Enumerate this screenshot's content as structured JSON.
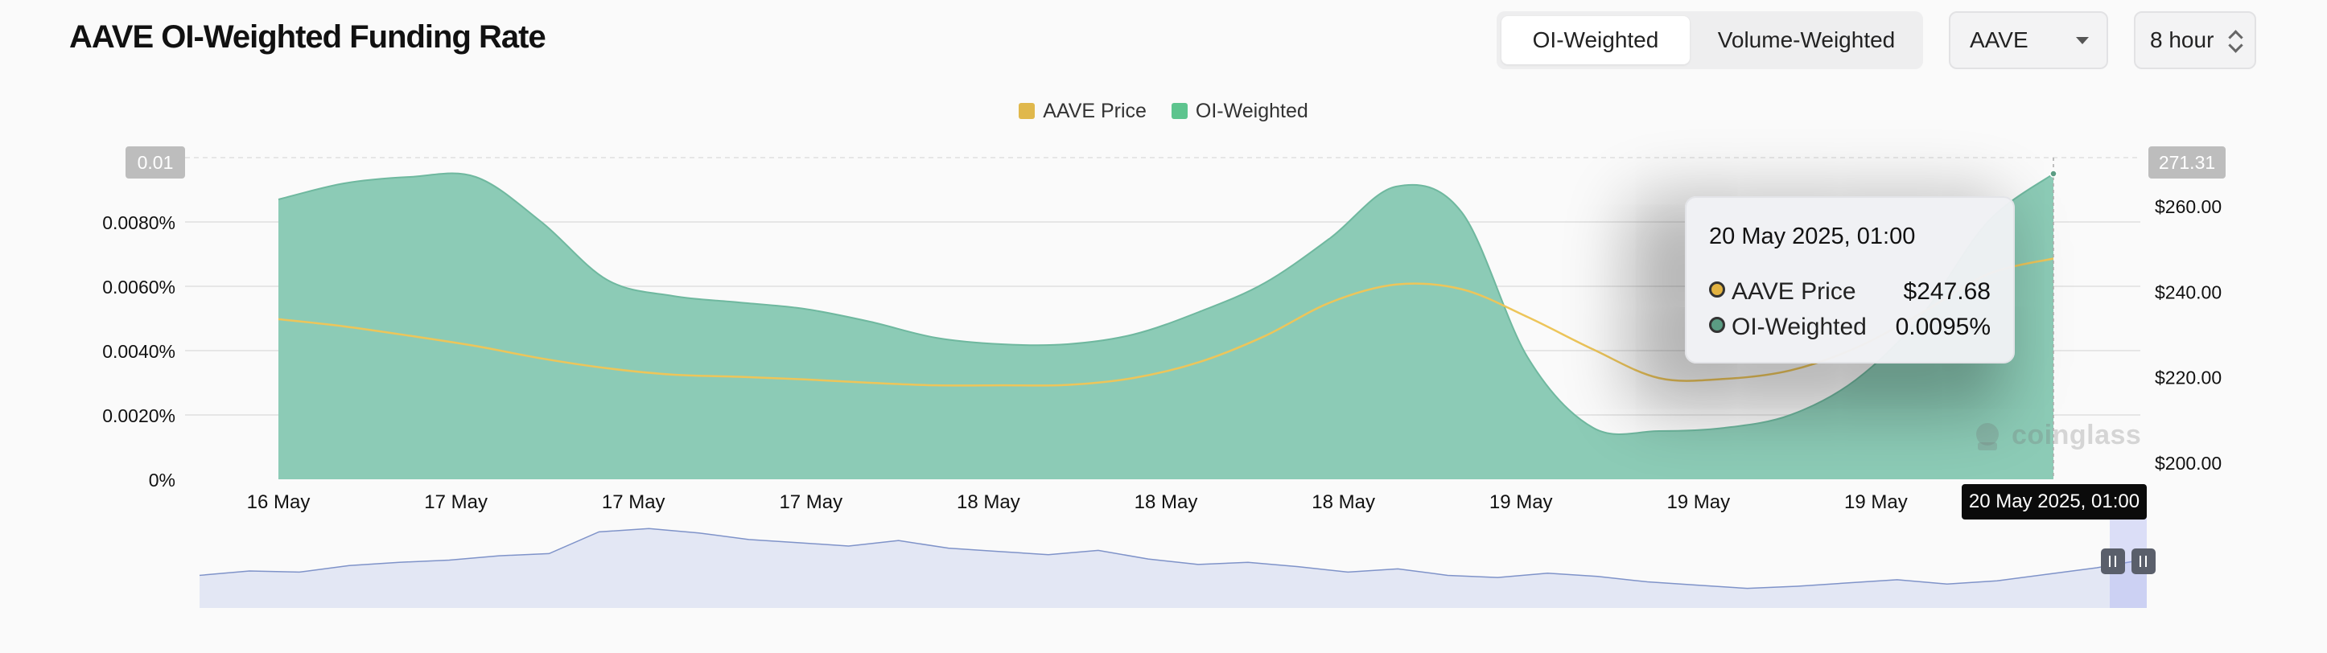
{
  "header": {
    "title": "AAVE OI-Weighted Funding Rate",
    "tabs": [
      {
        "label": "OI-Weighted",
        "active": true
      },
      {
        "label": "Volume-Weighted",
        "active": false
      }
    ],
    "symbol_select": {
      "value": "AAVE"
    },
    "interval_stepper": {
      "value": "8 hour"
    }
  },
  "legend": [
    {
      "label": "AAVE Price",
      "color": "#e0b84c"
    },
    {
      "label": "OI-Weighted",
      "color": "#5dc48e"
    }
  ],
  "tooltip": {
    "title": "20 May 2025, 01:00",
    "rows": [
      {
        "label": "AAVE Price",
        "value": "$247.68",
        "dot_color": "#e3b341"
      },
      {
        "label": "OI-Weighted",
        "value": "0.0095%",
        "dot_color": "#5b9c83"
      }
    ]
  },
  "crosshair": {
    "x_label": "20 May 2025, 01:00",
    "left_value": "0.01",
    "right_value": "271.31"
  },
  "watermark": "coinglass",
  "colors": {
    "area_fill": "#8ccbb6",
    "area_stroke": "#6fb89f",
    "price_line": "#edc55a",
    "grid": "#e6e6e6",
    "navigator_fill": "#e3e7f4",
    "navigator_line": "#7f93c9",
    "navigator_handle": "#5a5f6b"
  },
  "chart_data": {
    "type": "area",
    "title": "AAVE OI-Weighted Funding Rate",
    "x": [
      "16 May",
      "16 May",
      "16 May",
      "17 May",
      "17 May",
      "17 May",
      "17 May",
      "17 May",
      "17 May",
      "17 May",
      "17 May",
      "18 May",
      "18 May",
      "18 May",
      "18 May",
      "18 May",
      "18 May",
      "18 May",
      "18 May",
      "19 May",
      "19 May",
      "19 May",
      "19 May",
      "19 May",
      "19 May",
      "19 May",
      "19 May",
      "20 May 2025, 01:00"
    ],
    "x_tick_labels": [
      "16 May",
      "17 May",
      "17 May",
      "17 May",
      "18 May",
      "18 May",
      "18 May",
      "19 May",
      "19 May",
      "19 May"
    ],
    "series": [
      {
        "name": "OI-Weighted",
        "axis": "left",
        "unit": "%",
        "values": [
          0.0087,
          0.0092,
          0.0094,
          0.0094,
          0.008,
          0.0062,
          0.0057,
          0.0055,
          0.0053,
          0.0049,
          0.0044,
          0.0042,
          0.0042,
          0.0045,
          0.0052,
          0.0061,
          0.0075,
          0.0091,
          0.0083,
          0.0038,
          0.0016,
          0.0015,
          0.0016,
          0.002,
          0.0031,
          0.0051,
          0.008,
          0.0095
        ]
      },
      {
        "name": "AAVE Price",
        "axis": "right",
        "unit": "$",
        "values": [
          233.5,
          231.8,
          229.6,
          227.2,
          224.3,
          222.0,
          220.5,
          220.0,
          219.4,
          218.6,
          218.0,
          218.0,
          218.1,
          219.7,
          223.4,
          229.5,
          237.4,
          241.6,
          240.5,
          234.0,
          226.4,
          219.7,
          219.5,
          221.5,
          226.8,
          235.0,
          244.0,
          247.68
        ]
      }
    ],
    "y_left": {
      "ticks": [
        "0%",
        "0.0020%",
        "0.0040%",
        "0.0060%",
        "0.0080%",
        "0.01"
      ],
      "ylim": [
        0,
        0.01
      ]
    },
    "y_right": {
      "ticks": [
        "$200.00",
        "$220.00",
        "$240.00",
        "$260.00"
      ],
      "ylim": [
        196,
        271.31
      ]
    },
    "navigator": {
      "values": [
        0.3,
        0.34,
        0.33,
        0.39,
        0.42,
        0.44,
        0.48,
        0.5,
        0.7,
        0.73,
        0.69,
        0.63,
        0.6,
        0.57,
        0.62,
        0.55,
        0.52,
        0.49,
        0.53,
        0.45,
        0.4,
        0.42,
        0.38,
        0.33,
        0.36,
        0.3,
        0.28,
        0.32,
        0.29,
        0.24,
        0.21,
        0.18,
        0.2,
        0.23,
        0.26,
        0.22,
        0.25,
        0.31,
        0.37,
        0.45
      ]
    },
    "grid": true,
    "legend_position": "top-center"
  }
}
